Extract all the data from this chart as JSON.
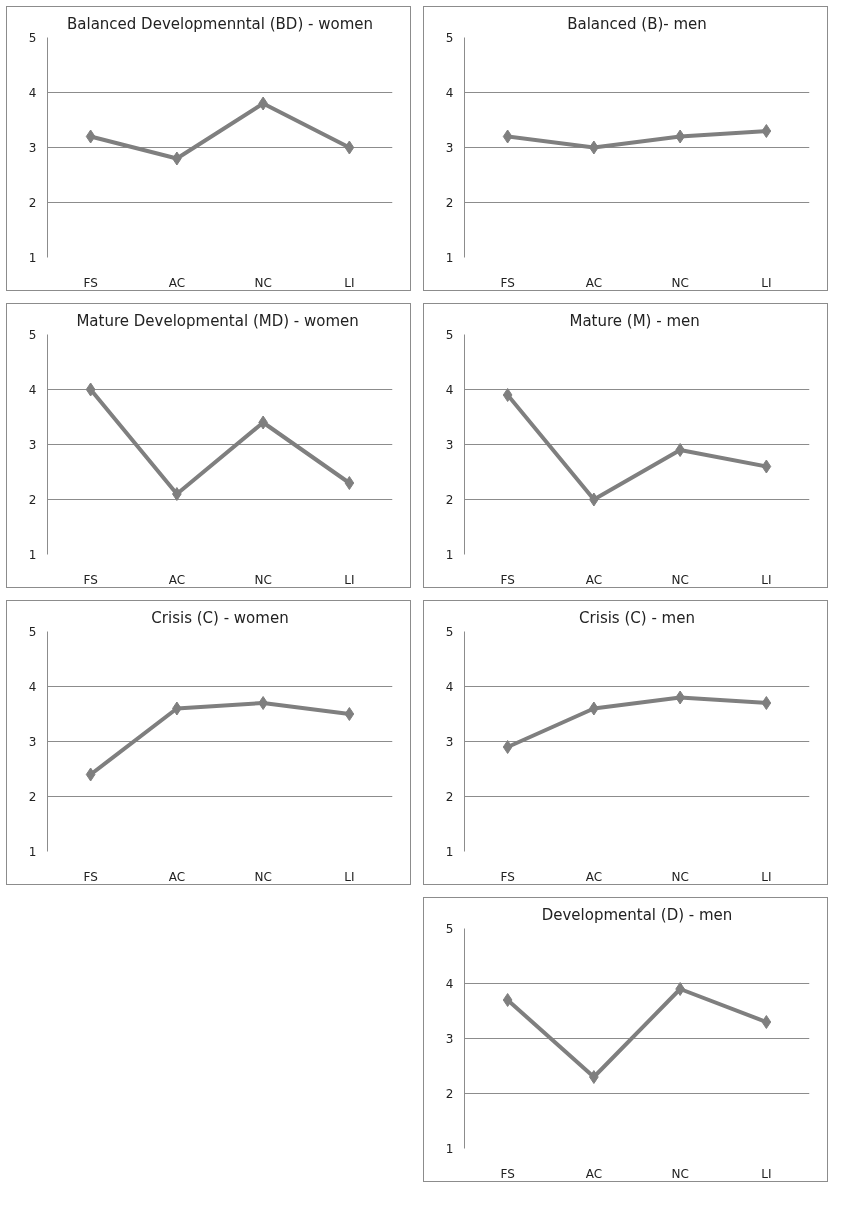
{
  "chart_data": [
    {
      "type": "line",
      "title": "Balanced Developmenntal (BD) - women",
      "categories": [
        "FS",
        "AC",
        "NC",
        "LI"
      ],
      "values": [
        3.2,
        2.8,
        3.8,
        3.0
      ],
      "color": "#7f7f7f",
      "ylim": [
        1,
        5
      ],
      "yticks": [
        1,
        2,
        3,
        4,
        5
      ],
      "grid": "y",
      "marker": "diamond"
    },
    {
      "type": "line",
      "title": "Balanced (B)- men",
      "categories": [
        "FS",
        "AC",
        "NC",
        "LI"
      ],
      "values": [
        3.2,
        3.0,
        3.2,
        3.3
      ],
      "color": "#7f7f7f",
      "ylim": [
        1,
        5
      ],
      "yticks": [
        1,
        2,
        3,
        4,
        5
      ],
      "grid": "y",
      "marker": "diamond"
    },
    {
      "type": "line",
      "title": "Mature Developmental (MD)  - women",
      "categories": [
        "FS",
        "AC",
        "NC",
        "LI"
      ],
      "values": [
        4.0,
        2.1,
        3.4,
        2.3
      ],
      "color": "#7f7f7f",
      "ylim": [
        1,
        5
      ],
      "yticks": [
        1,
        2,
        3,
        4,
        5
      ],
      "grid": "y",
      "marker": "diamond"
    },
    {
      "type": "line",
      "title": "Mature (M)  - men",
      "categories": [
        "FS",
        "AC",
        "NC",
        "LI"
      ],
      "values": [
        3.9,
        2.0,
        2.9,
        2.6
      ],
      "color": "#7f7f7f",
      "ylim": [
        1,
        5
      ],
      "yticks": [
        1,
        2,
        3,
        4,
        5
      ],
      "grid": "y",
      "marker": "diamond"
    },
    {
      "type": "line",
      "title": "Crisis (C) - women",
      "categories": [
        "FS",
        "AC",
        "NC",
        "LI"
      ],
      "values": [
        2.4,
        3.6,
        3.7,
        3.5
      ],
      "color": "#7f7f7f",
      "ylim": [
        1,
        5
      ],
      "yticks": [
        1,
        2,
        3,
        4,
        5
      ],
      "grid": "y",
      "marker": "diamond"
    },
    {
      "type": "line",
      "title": "Crisis (C) - men",
      "categories": [
        "FS",
        "AC",
        "NC",
        "LI"
      ],
      "values": [
        2.9,
        3.6,
        3.8,
        3.7
      ],
      "color": "#7f7f7f",
      "ylim": [
        1,
        5
      ],
      "yticks": [
        1,
        2,
        3,
        4,
        5
      ],
      "grid": "y",
      "marker": "diamond"
    },
    {
      "type": "line",
      "title": "Developmental (D) - men",
      "categories": [
        "FS",
        "AC",
        "NC",
        "LI"
      ],
      "values": [
        3.7,
        2.3,
        3.9,
        3.3
      ],
      "color": "#7f7f7f",
      "ylim": [
        1,
        5
      ],
      "yticks": [
        1,
        2,
        3,
        4,
        5
      ],
      "grid": "y",
      "marker": "diamond"
    }
  ]
}
